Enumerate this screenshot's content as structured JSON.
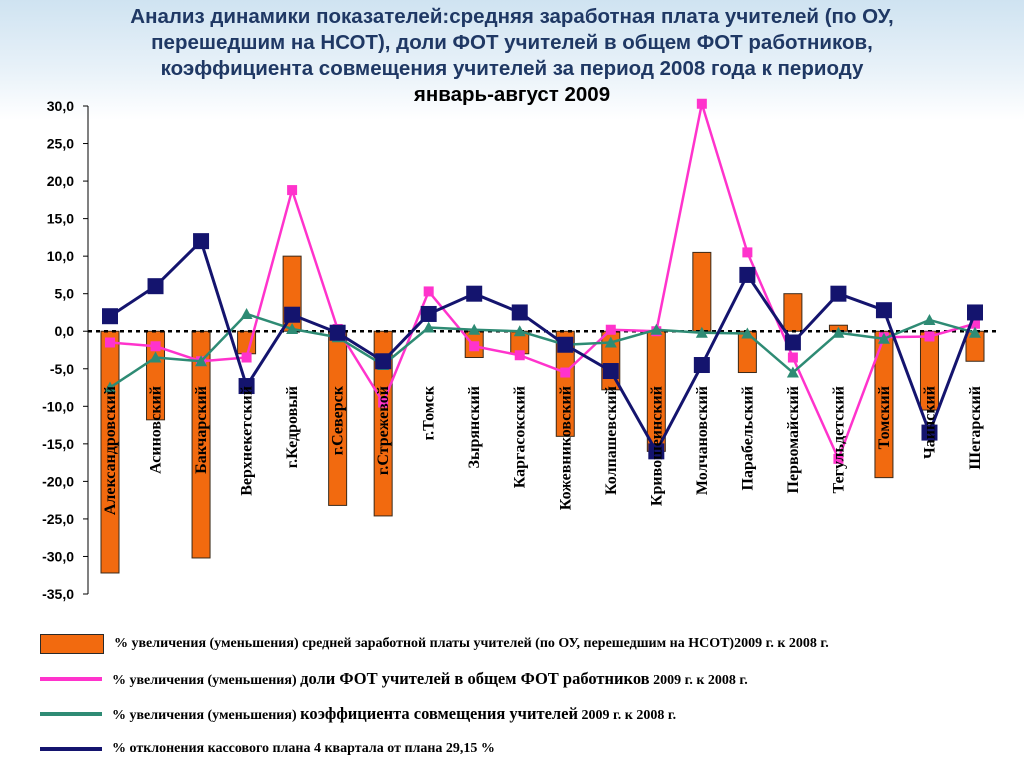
{
  "title": {
    "line1": "Анализ динамики показателей:средняя заработная плата учителей (по ОУ,",
    "line2": "перешедшим на НСОТ), доли ФОТ учителей в общем ФОТ работников,",
    "line3": "коэффициента совмещения учителей за период 2008 года к периоду",
    "line4": "январь-август 2009"
  },
  "legend": [
    {
      "id": "bars",
      "text_a": "% увеличения (уменьшения) средней заработной платы учителей (по ОУ, перешедшим на НСОТ)2009 г. к 2008 г.",
      "text_big": "",
      "text_c": ""
    },
    {
      "id": "pink",
      "text_a": "% увеличения (уменьшения) ",
      "text_big": "доли ФОТ учителей в общем ФОТ работников",
      "text_c": " 2009 г. к 2008 г."
    },
    {
      "id": "teal",
      "text_a": "% увеличения (уменьшения) ",
      "text_big": "коэффициента совмещения учителей",
      "text_c": " 2009 г. к 2008 г."
    },
    {
      "id": "navy",
      "text_a": "% отклонения кассового плана 4 квартала от плана 29,15 %",
      "text_big": "",
      "text_c": ""
    }
  ],
  "colors": {
    "bar": "#f26a0f",
    "pink": "#ff33cc",
    "teal": "#2e8b74",
    "navy": "#14146e"
  },
  "chart_data": {
    "type": "bar+line",
    "categories": [
      "Александровский",
      "Асиновский",
      "Бакчарский",
      "Верхнекетский",
      "г.Кедровый",
      "г.Северск",
      "г.Стрежевой",
      "г.Томск",
      "Зырянский",
      "Каргасокский",
      "Кожевниковский",
      "Колпашевский",
      "Кривошеинский",
      "Молчановский",
      "Парабельский",
      "Первомайский",
      "Тегульдетский",
      "Томский",
      "Чаинский",
      "Шегарский"
    ],
    "ylim": [
      -35,
      30
    ],
    "yticks": [
      "30,0",
      "25,0",
      "20,0",
      "15,0",
      "10,0",
      "5,0",
      "0,0",
      "-5,0",
      "-10,0",
      "-15,0",
      "-20,0",
      "-25,0",
      "-30,0",
      "-35,0"
    ],
    "grid": false,
    "legend_position": "bottom",
    "series": [
      {
        "key": "bars",
        "kind": "bar",
        "values": [
          -32.2,
          -11.8,
          -30.2,
          -3.0,
          10.0,
          -23.2,
          -24.6,
          0.0,
          -3.5,
          -3.0,
          -14.0,
          -7.8,
          -16.0,
          10.5,
          -5.5,
          5.0,
          0.8,
          -19.5,
          -10.5,
          -4.0
        ]
      },
      {
        "key": "pink",
        "kind": "line",
        "values": [
          -1.5,
          -2.0,
          -4.0,
          -3.5,
          18.8,
          0.3,
          -9.5,
          5.3,
          -2.0,
          -3.2,
          -5.5,
          0.2,
          0.0,
          30.3,
          10.5,
          -3.5,
          -17.0,
          -0.8,
          -0.7,
          1.0
        ]
      },
      {
        "key": "teal",
        "kind": "line",
        "values": [
          -7.5,
          -3.5,
          -4.0,
          2.3,
          0.3,
          -0.8,
          -4.5,
          0.5,
          0.2,
          0.0,
          -1.8,
          -1.5,
          0.2,
          -0.2,
          -0.3,
          -5.5,
          -0.2,
          -1.0,
          1.5,
          -0.2
        ]
      },
      {
        "key": "navy",
        "kind": "line",
        "values": [
          2.0,
          6.0,
          12.0,
          -7.3,
          2.2,
          -0.2,
          -4.0,
          2.3,
          5.0,
          2.5,
          -1.8,
          -5.3,
          -16.0,
          -4.5,
          7.5,
          -1.5,
          5.0,
          2.8,
          -13.5,
          2.5
        ]
      }
    ]
  }
}
